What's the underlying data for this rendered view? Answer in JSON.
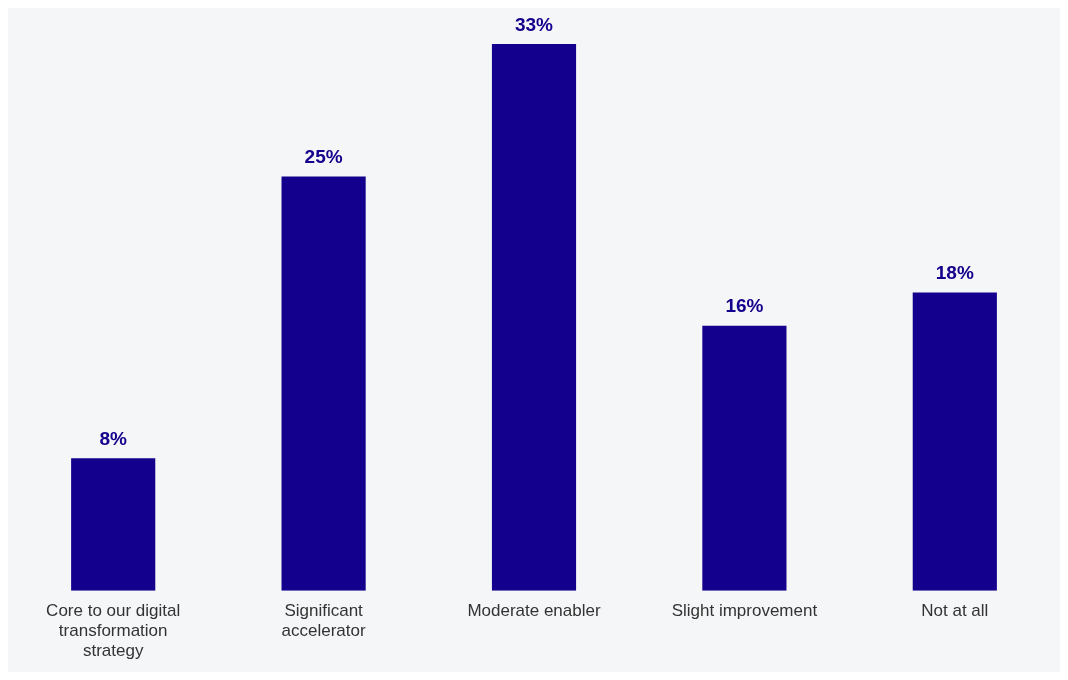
{
  "chart_data": {
    "type": "bar",
    "categories": [
      "Core to our digital transformation strategy",
      "Significant accelerator",
      "Moderate enabler",
      "Slight improvement",
      "Not at all"
    ],
    "values": [
      8,
      25,
      33,
      16,
      18
    ],
    "value_labels": [
      "8%",
      "25%",
      "33%",
      "16%",
      "18%"
    ],
    "color": "#13008c",
    "grid": false,
    "legend": false,
    "tick_labels": "x"
  }
}
